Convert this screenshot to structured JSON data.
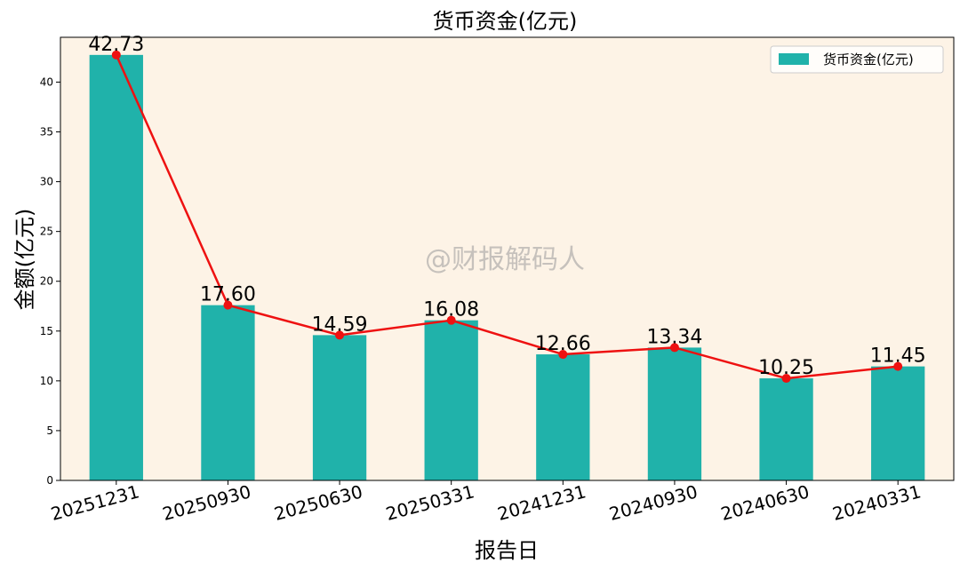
{
  "chart_data": {
    "type": "bar",
    "title": "货币资金(亿元)",
    "xlabel": "报告日",
    "ylabel": "金额(亿元)",
    "categories": [
      "20251231",
      "20250930",
      "20250630",
      "20250331",
      "20241231",
      "20240930",
      "20240630",
      "20240331"
    ],
    "series": [
      {
        "name": "货币资金(亿元)",
        "values": [
          42.73,
          17.6,
          14.59,
          16.08,
          12.66,
          13.34,
          10.25,
          11.45
        ],
        "labels": [
          "42.73",
          "17.60",
          "14.59",
          "16.08",
          "12.66",
          "13.34",
          "10.25",
          "11.45"
        ],
        "color": "#20b2aa",
        "overlay_line_color": "#ee1111"
      }
    ],
    "ylim": [
      0,
      44.5
    ],
    "yticks": [
      0,
      5,
      10,
      15,
      20,
      25,
      30,
      35,
      40
    ],
    "grid": false,
    "legend_position": "top-right",
    "plot_background": "#fdf3e6",
    "watermark": "@财报解码人"
  }
}
